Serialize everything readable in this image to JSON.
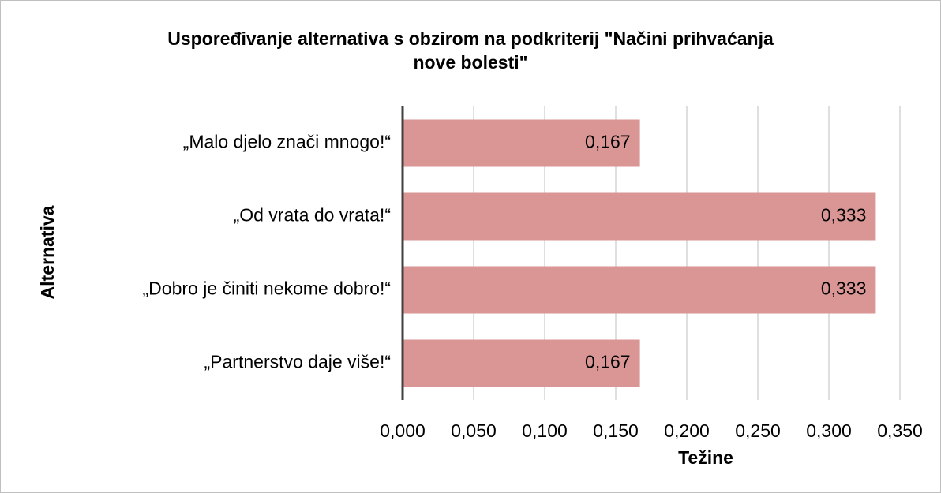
{
  "chart_data": {
    "type": "bar",
    "orientation": "horizontal",
    "title": "Uspoređivanje alternativa s obzirom na podkriterij \"Načini prihvaćanja nove bolesti\"",
    "x_label": "Težine",
    "y_label": "Alternativa",
    "categories": [
      "„Malo djelo znači mnogo!“",
      "„Od vrata do vrata!“",
      "„Dobro je činiti nekome dobro!“",
      "„Partnerstvo daje više!“"
    ],
    "values": [
      0.167,
      0.333,
      0.333,
      0.167
    ],
    "value_labels": [
      "0,167",
      "0,333",
      "0,333",
      "0,167"
    ],
    "color": "#d99694",
    "xlim": [
      0,
      0.35
    ],
    "xticks": [
      {
        "value": 0,
        "label": "0,000"
      },
      {
        "value": 0.05,
        "label": "0,050"
      },
      {
        "value": 0.1,
        "label": "0,100"
      },
      {
        "value": 0.15,
        "label": "0,150"
      },
      {
        "value": 0.2,
        "label": "0,200"
      },
      {
        "value": 0.25,
        "label": "0,250"
      },
      {
        "value": 0.3,
        "label": "0,300"
      },
      {
        "value": 0.35,
        "label": "0,350"
      }
    ],
    "grid": true
  }
}
